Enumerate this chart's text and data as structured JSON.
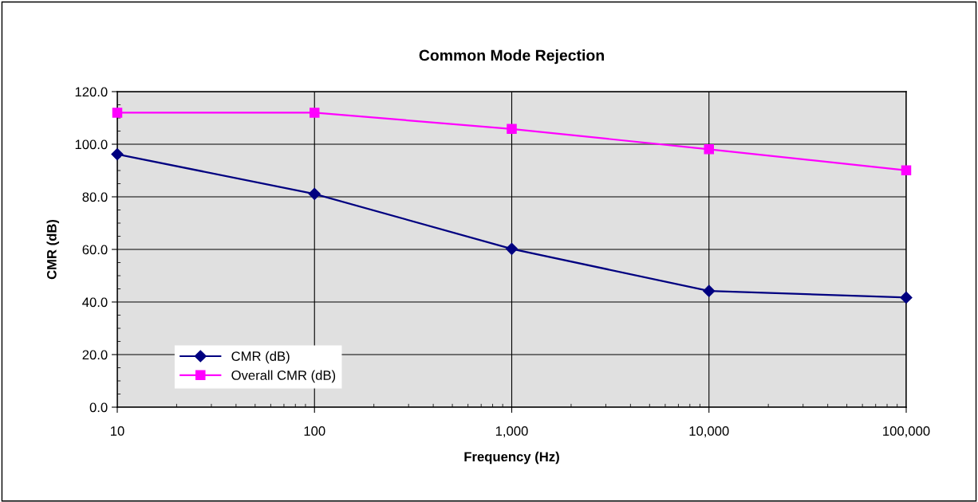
{
  "chart_data": {
    "type": "line",
    "title": "Common Mode Rejection",
    "xlabel": "Frequency (Hz)",
    "ylabel": "CMR (dB)",
    "x": [
      10,
      100,
      1000,
      10000,
      100000
    ],
    "series": [
      {
        "name": "CMR (dB)",
        "color": "#000080",
        "marker": "diamond",
        "values": [
          96.2,
          81.1,
          60.2,
          44.2,
          41.7
        ]
      },
      {
        "name": "Overall CMR (dB)",
        "color": "#ff00ff",
        "marker": "square",
        "values": [
          112,
          112,
          105.8,
          98.1,
          90.1
        ]
      }
    ],
    "log": "x",
    "xlim": [
      10,
      100000
    ],
    "xticks": [
      10,
      100,
      {
        "value": 1000,
        "label": "1,000"
      },
      {
        "value": 10000,
        "label": "10,000"
      },
      {
        "value": 100000,
        "label": "100,000"
      }
    ],
    "ylim": [
      0,
      120
    ],
    "yticks": [
      {
        "value": 0,
        "label": "0.0"
      },
      {
        "value": 20,
        "label": "20.0"
      },
      {
        "value": 40,
        "label": "40.0"
      },
      {
        "value": 60,
        "label": "60.0"
      },
      {
        "value": 80,
        "label": "80.0"
      },
      {
        "value": 100,
        "label": "100.0"
      },
      {
        "value": 120,
        "label": "120.0"
      }
    ],
    "grid": true,
    "legend": "bottom left",
    "line_style": "solid"
  }
}
